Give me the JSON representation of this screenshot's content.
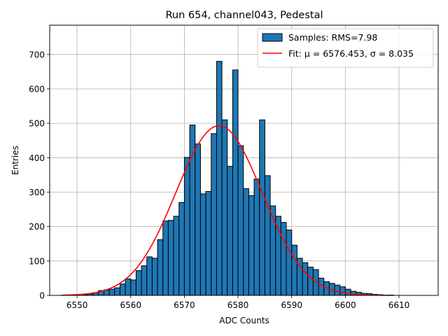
{
  "chart_data": {
    "type": "bar",
    "title": "Run 654, channel043, Pedestal",
    "xlabel": "ADC Counts",
    "ylabel": "Entries",
    "xlim": [
      6544.9,
      6617.3
    ],
    "ylim": [
      0,
      785
    ],
    "xticks": [
      6550,
      6560,
      6570,
      6580,
      6590,
      6600,
      6610
    ],
    "yticks": [
      0,
      100,
      200,
      300,
      400,
      500,
      600,
      700
    ],
    "grid": true,
    "legend_position": "top-right",
    "bin_start": 6547,
    "bin_width": 1,
    "series": [
      {
        "name": "Samples: RMS=7.98",
        "kind": "histogram",
        "color": "#1f77b4",
        "edgecolor": "#000000",
        "values": [
          0,
          0,
          0,
          0,
          2,
          4,
          8,
          14,
          16,
          18,
          22,
          33,
          48,
          45,
          72,
          86,
          112,
          108,
          162,
          216,
          218,
          230,
          270,
          401,
          495,
          440,
          295,
          302,
          470,
          680,
          510,
          375,
          655,
          435,
          310,
          290,
          338,
          510,
          348,
          260,
          230,
          212,
          190,
          146,
          108,
          95,
          82,
          75,
          50,
          40,
          35,
          30,
          25,
          18,
          12,
          9,
          6,
          5,
          3,
          2,
          1,
          1,
          0,
          0
        ]
      },
      {
        "name": "Fit: μ = 6576.453, σ = 8.035",
        "kind": "gaussian-fit",
        "color": "#ff0000",
        "mu": 6576.453,
        "sigma": 8.035,
        "peak": 493,
        "x_range": [
          6547,
          6608
        ]
      }
    ],
    "legend_entries": [
      {
        "label": "Samples: RMS=7.98",
        "marker": "patch",
        "color": "#1f77b4"
      },
      {
        "label": "Fit: μ = 6576.453, σ = 8.035",
        "marker": "line",
        "color": "#ff0000"
      }
    ]
  }
}
